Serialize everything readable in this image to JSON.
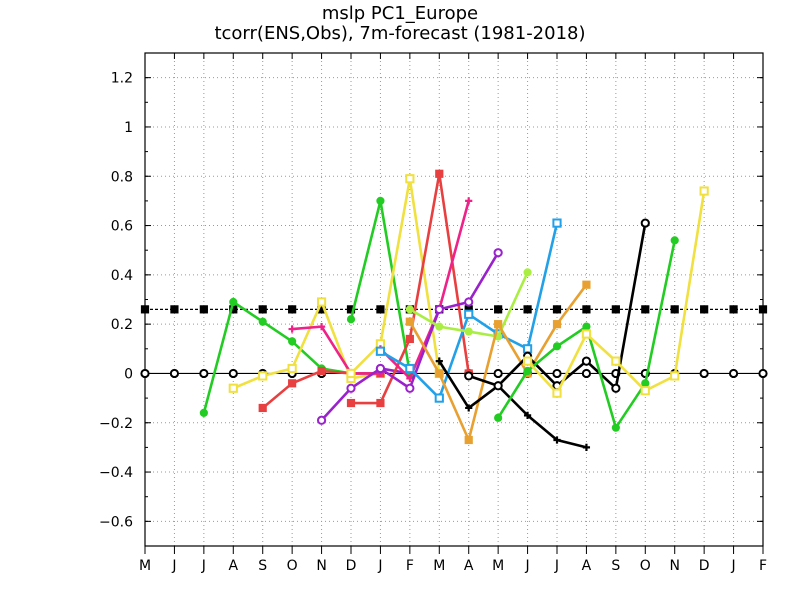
{
  "chart_data": {
    "type": "line",
    "title": "mslp  PC1_Europe",
    "subtitle": "tcorr(ENS,Obs), 7m-forecast (1981-2018)",
    "xlabel": "",
    "ylabel": "",
    "x_ticks": [
      "M",
      "J",
      "J",
      "A",
      "S",
      "O",
      "N",
      "D",
      "J",
      "F",
      "M",
      "A",
      "M",
      "J",
      "J",
      "A",
      "S",
      "O",
      "N",
      "D",
      "J",
      "F"
    ],
    "y_ticks": [
      "1.2",
      "1",
      "0.8",
      "0.6",
      "0.4",
      "0.2",
      "0",
      "−0.2",
      "−0.4",
      "−0.6"
    ],
    "ylim": [
      -0.7,
      1.3
    ],
    "grid": true,
    "reference_lines": [
      {
        "value": 0,
        "color": "#000000",
        "marker": "open-circle",
        "style": "solid"
      },
      {
        "value": 0.26,
        "color": "#000000",
        "marker": "filled-square",
        "style": "dashed"
      }
    ],
    "series": [
      {
        "color": "#22cc22",
        "marker": "filled-circle",
        "x": [
          2,
          3,
          4,
          5,
          6,
          7,
          8
        ],
        "values": [
          -0.16,
          0.29,
          0.21,
          0.13,
          0.02,
          0.0,
          0.0
        ]
      },
      {
        "color": "#f0e040",
        "marker": "open-square",
        "x": [
          3,
          4,
          5,
          6,
          7,
          8
        ],
        "values": [
          -0.06,
          -0.01,
          0.02,
          0.29,
          -0.02,
          0.0
        ]
      },
      {
        "color": "#e84040",
        "marker": "filled-square",
        "x": [
          4,
          5,
          6,
          7,
          8
        ],
        "values": [
          -0.14,
          -0.04,
          0.01,
          0.0,
          0.0
        ]
      },
      {
        "color": "#ee2288",
        "marker": "plus",
        "x": [
          5,
          6,
          7,
          8
        ],
        "values": [
          0.18,
          0.19,
          0.0,
          0.0
        ]
      },
      {
        "color": "#9922cc",
        "marker": "open-circle",
        "x": [
          6,
          7,
          8,
          9
        ],
        "values": [
          -0.19,
          -0.06,
          0.02,
          0.0
        ]
      },
      {
        "color": "#22cc22",
        "marker": "filled-circle",
        "x": [
          7,
          8,
          9
        ],
        "values": [
          0.22,
          0.7,
          0.0
        ]
      },
      {
        "color": "#f0e040",
        "marker": "open-square",
        "x": [
          7,
          8,
          9,
          10
        ],
        "values": [
          0.0,
          0.12,
          0.79,
          0.0
        ]
      },
      {
        "color": "#e84040",
        "marker": "filled-square",
        "x": [
          7,
          8,
          9,
          10,
          11
        ],
        "values": [
          -0.12,
          -0.12,
          0.14,
          0.81,
          0.0
        ]
      },
      {
        "color": "#ee2288",
        "marker": "plus",
        "x": [
          8,
          9,
          10,
          11
        ],
        "values": [
          0.1,
          -0.02,
          0.26,
          0.7
        ]
      },
      {
        "color": "#9922cc",
        "marker": "open-circle",
        "x": [
          8,
          9,
          10,
          11,
          12
        ],
        "values": [
          0.02,
          -0.06,
          0.26,
          0.29,
          0.49
        ]
      },
      {
        "color": "#22a0e8",
        "marker": "open-square",
        "x": [
          8,
          9,
          10,
          11,
          12,
          13,
          14
        ],
        "values": [
          0.09,
          0.02,
          -0.1,
          0.24,
          0.16,
          0.1,
          0.61
        ]
      },
      {
        "color": "#aaee44",
        "marker": "filled-circle",
        "x": [
          9,
          10,
          11,
          12,
          13
        ],
        "values": [
          0.26,
          0.19,
          0.17,
          0.15,
          0.41
        ]
      },
      {
        "color": "#e8a030",
        "marker": "filled-square",
        "x": [
          9,
          10,
          11,
          12,
          13,
          14,
          15
        ],
        "values": [
          0.21,
          0.0,
          -0.27,
          0.2,
          0.0,
          0.2,
          0.36
        ]
      },
      {
        "color": "#000000",
        "marker": "plus",
        "x": [
          10,
          11,
          12,
          13,
          14,
          15
        ],
        "values": [
          0.05,
          -0.14,
          -0.05,
          -0.17,
          -0.27,
          -0.3
        ]
      },
      {
        "color": "#000000",
        "marker": "open-circle",
        "x": [
          11,
          12,
          13,
          14,
          15,
          16,
          17
        ],
        "values": [
          -0.01,
          -0.05,
          0.07,
          -0.05,
          0.05,
          -0.06,
          0.61
        ]
      },
      {
        "color": "#22cc22",
        "marker": "filled-circle",
        "x": [
          12,
          13,
          14,
          15,
          16,
          17,
          18
        ],
        "values": [
          -0.18,
          0.01,
          0.11,
          0.19,
          -0.22,
          -0.04,
          0.54
        ]
      },
      {
        "color": "#f0e040",
        "marker": "open-square",
        "x": [
          13,
          14,
          15,
          16,
          17,
          18,
          19
        ],
        "values": [
          0.05,
          -0.08,
          0.16,
          0.05,
          -0.07,
          -0.01,
          0.74
        ]
      }
    ]
  }
}
